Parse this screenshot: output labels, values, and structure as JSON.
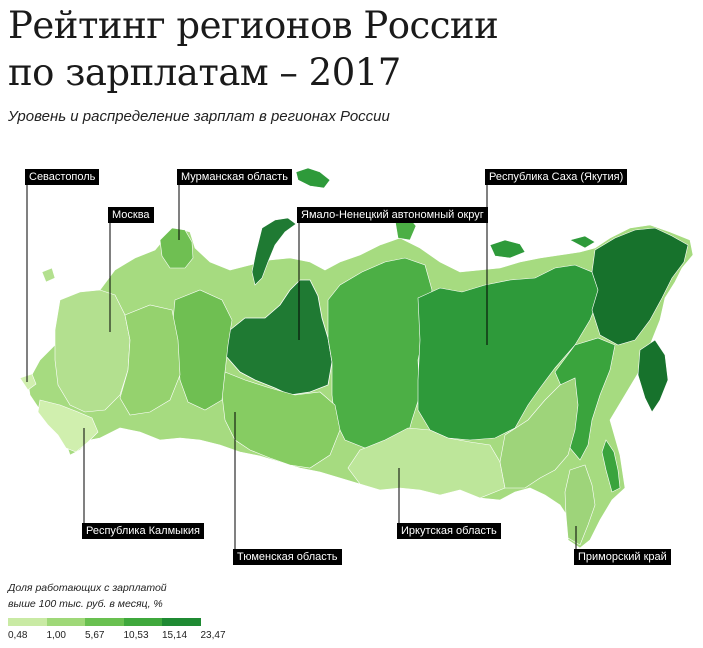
{
  "title_line1": "Рейтинг регионов России",
  "title_line2": "по зарплатам – 2017",
  "subtitle": "Уровень и распределение зарплат в регионах России",
  "callouts": {
    "sevastopol": "Севастополь",
    "moscow": "Москва",
    "murmansk": "Мурманская область",
    "yamal": "Ямало-Ненецкий автономный округ",
    "yakutia": "Республика Саха (Якутия)",
    "kalmykia": "Республика Калмыкия",
    "tyumen": "Тюменская область",
    "irkutsk": "Иркутская область",
    "primorsky": "Приморский край"
  },
  "legend": {
    "title_line1": "Доля работающих с зарплатой",
    "title_line2": "выше 100 тыс. руб. в месяц, %",
    "ticks": [
      "0,48",
      "1,00",
      "5,67",
      "10,53",
      "15,14",
      "23,47"
    ],
    "colors": [
      "#c9eaa4",
      "#9fd878",
      "#69c050",
      "#3fa83c",
      "#1f8a33",
      "#0f6b27"
    ]
  }
}
